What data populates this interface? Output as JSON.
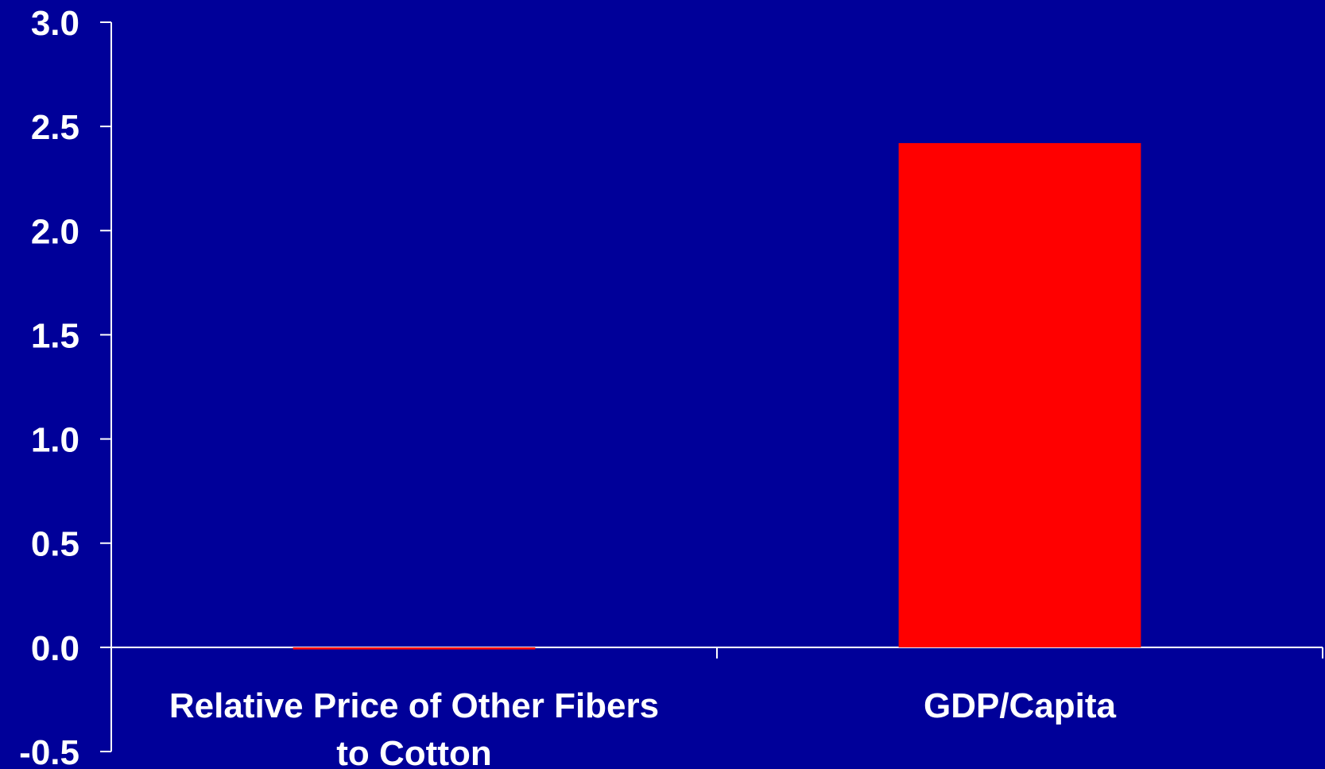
{
  "chart_data": {
    "type": "bar",
    "title": "",
    "xlabel": "",
    "ylabel": "",
    "categories": [
      [
        "Relative Price of Other Fibers",
        "to Cotton"
      ],
      [
        "GDP/Capita"
      ]
    ],
    "values": [
      -0.01,
      2.42
    ],
    "ylim": [
      -0.5,
      3.0
    ],
    "yticks": [
      "3.0",
      "2.5",
      "2.0",
      "1.5",
      "1.0",
      "0.5",
      "0.0",
      "-0.5"
    ],
    "ytick_values": [
      3.0,
      2.5,
      2.0,
      1.5,
      1.0,
      0.5,
      0.0,
      -0.5
    ],
    "grid": false,
    "legend": "none"
  },
  "colors": {
    "background": "#000099",
    "bar": "#ff0000",
    "axis": "#ffffff",
    "text": "#ffffff"
  }
}
